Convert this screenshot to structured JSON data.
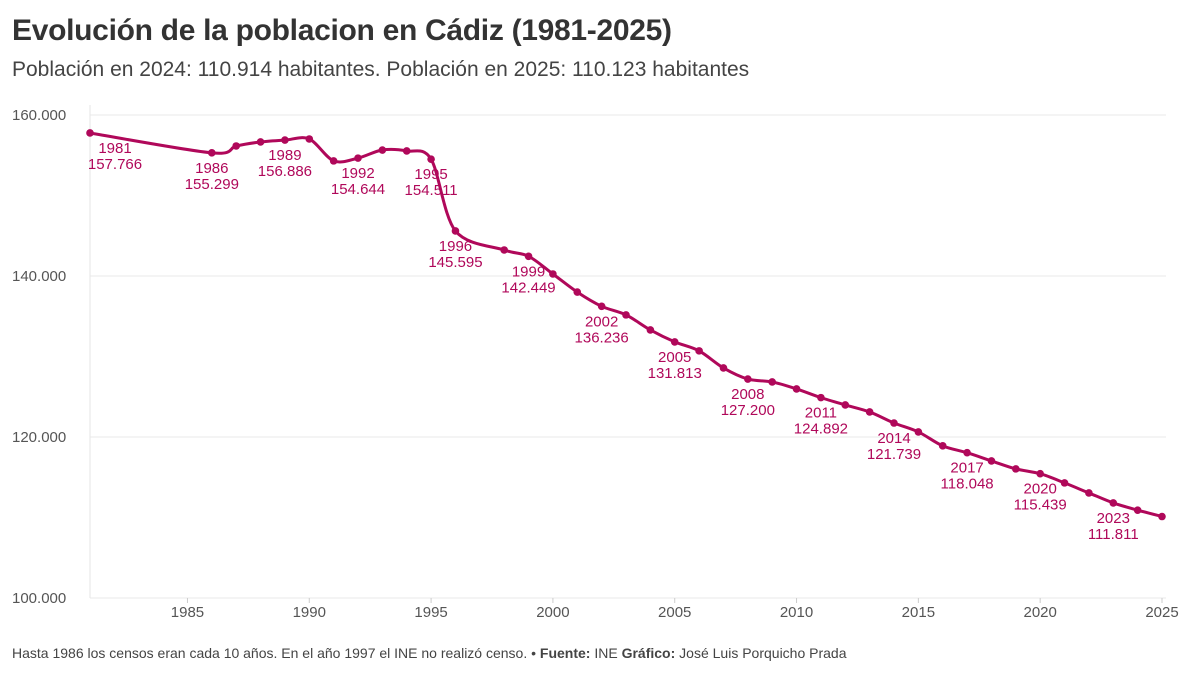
{
  "title": "Evolución de la poblacion en Cádiz (1981-2025)",
  "subtitle": "Población en 2024: 110.914 habitantes. Población en 2025: 110.123 habitantes",
  "note": {
    "text": "Hasta 1986 los censos eran cada 10 años. En el año 1997 el INE no realizó censo. • ",
    "source_label": "Fuente:",
    "source": " INE ",
    "chart_label": "Gráfico:",
    "author": " José Luis Porquicho Prada"
  },
  "chart_data": {
    "type": "line",
    "color": "#b0085a",
    "xlim": [
      1981,
      2025
    ],
    "ylim": [
      100000,
      160000
    ],
    "yticks": [
      100000,
      120000,
      140000,
      160000
    ],
    "ytick_labels": [
      "100.000",
      "120.000",
      "140.000",
      "160.000"
    ],
    "xticks": [
      1985,
      1990,
      1995,
      2000,
      2005,
      2010,
      2015,
      2020,
      2025
    ],
    "grid": "horizontal",
    "x": [
      1981,
      1986,
      1987,
      1988,
      1989,
      1990,
      1991,
      1992,
      1993,
      1994,
      1995,
      1996,
      1998,
      1999,
      2000,
      2001,
      2002,
      2003,
      2004,
      2005,
      2006,
      2007,
      2008,
      2009,
      2010,
      2011,
      2012,
      2013,
      2014,
      2015,
      2016,
      2017,
      2018,
      2019,
      2020,
      2021,
      2022,
      2023,
      2024,
      2025
    ],
    "values": [
      157766,
      155299,
      156150,
      156650,
      156886,
      157020,
      154300,
      154644,
      155650,
      155530,
      154511,
      145595,
      143230,
      142449,
      140250,
      138000,
      136236,
      135170,
      133300,
      131813,
      130700,
      128580,
      127200,
      126840,
      125970,
      124892,
      123980,
      123110,
      121739,
      120630,
      118900,
      118048,
      117030,
      116040,
      115439,
      114300,
      113050,
      111811,
      110914,
      110123
    ],
    "annotations": [
      {
        "year": "1981",
        "value": "157.766"
      },
      {
        "year": "1986",
        "value": "155.299"
      },
      {
        "year": "1989",
        "value": "156.886"
      },
      {
        "year": "1992",
        "value": "154.644"
      },
      {
        "year": "1995",
        "value": "154.511"
      },
      {
        "year": "1996",
        "value": "145.595"
      },
      {
        "year": "1999",
        "value": "142.449"
      },
      {
        "year": "2002",
        "value": "136.236"
      },
      {
        "year": "2005",
        "value": "131.813"
      },
      {
        "year": "2008",
        "value": "127.200"
      },
      {
        "year": "2011",
        "value": "124.892"
      },
      {
        "year": "2014",
        "value": "121.739"
      },
      {
        "year": "2017",
        "value": "118.048"
      },
      {
        "year": "2020",
        "value": "115.439"
      },
      {
        "year": "2023",
        "value": "111.811"
      }
    ]
  }
}
